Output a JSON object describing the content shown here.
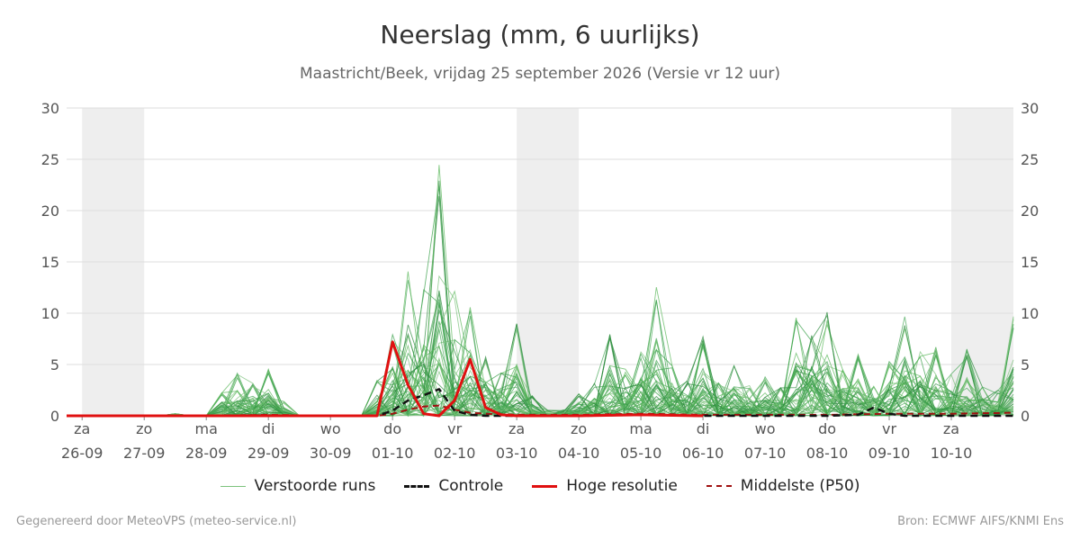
{
  "chart_data": {
    "type": "line",
    "title": "Neerslag (mm, 6 uurlijks)",
    "subtitle": "Maastricht/Beek, vrijdag 25 september 2026 (Versie vr 12 uur)",
    "ylim": [
      0,
      30
    ],
    "yticks": [
      0,
      5,
      10,
      15,
      20,
      25,
      30
    ],
    "xlim": [
      -0.25,
      15
    ],
    "grid": true,
    "weekend_shading": true,
    "x_ticks": [
      {
        "x": 0,
        "day": "za",
        "date": "26-09"
      },
      {
        "x": 1,
        "day": "zo",
        "date": "27-09"
      },
      {
        "x": 2,
        "day": "ma",
        "date": "28-09"
      },
      {
        "x": 3,
        "day": "di",
        "date": "29-09"
      },
      {
        "x": 4,
        "day": "wo",
        "date": "30-09"
      },
      {
        "x": 5,
        "day": "do",
        "date": "01-10"
      },
      {
        "x": 6,
        "day": "vr",
        "date": "02-10"
      },
      {
        "x": 7,
        "day": "za",
        "date": "03-10"
      },
      {
        "x": 8,
        "day": "zo",
        "date": "04-10"
      },
      {
        "x": 9,
        "day": "ma",
        "date": "05-10"
      },
      {
        "x": 10,
        "day": "di",
        "date": "06-10"
      },
      {
        "x": 11,
        "day": "wo",
        "date": "07-10"
      },
      {
        "x": 12,
        "day": "do",
        "date": "08-10"
      },
      {
        "x": 13,
        "day": "vr",
        "date": "09-10"
      },
      {
        "x": 14,
        "day": "za",
        "date": "10-10"
      }
    ],
    "legend": {
      "placement": "bottom",
      "entries": [
        {
          "label": "Verstoorde runs",
          "color": "#7cc27c",
          "style": "thin"
        },
        {
          "label": "Controle",
          "color": "#111111",
          "style": "dashed"
        },
        {
          "label": "Hoge resolutie",
          "color": "#e01010",
          "style": "solid"
        },
        {
          "label": "Middelste (P50)",
          "color": "#a01010",
          "style": "dashed"
        }
      ]
    },
    "series": [
      {
        "name": "Hoge resolutie",
        "color": "#e01010",
        "x": [
          -0.25,
          0,
          1,
          2,
          3,
          4,
          4.75,
          5,
          5.25,
          5.5,
          5.75,
          6,
          6.25,
          6.5,
          6.75,
          7,
          7.25,
          8,
          9,
          10
        ],
        "values": [
          0,
          0,
          0,
          0,
          0,
          0,
          0,
          7.2,
          3.0,
          0.2,
          0,
          1.5,
          5.5,
          0.8,
          0.1,
          0,
          0,
          0,
          0.1,
          0
        ]
      },
      {
        "name": "Controle",
        "color": "#111111",
        "x": [
          -0.25,
          0,
          1,
          2,
          3,
          4,
          4.75,
          5,
          5.25,
          5.5,
          5.75,
          6,
          6.25,
          6.5,
          7,
          8,
          9,
          10,
          11,
          12,
          12.5,
          12.75,
          13,
          13.25,
          14,
          15
        ],
        "values": [
          0,
          0,
          0,
          0,
          0,
          0,
          0,
          0.5,
          1.5,
          2.0,
          2.6,
          0.5,
          0.1,
          0,
          0,
          0,
          0.1,
          0,
          0,
          0,
          0.1,
          0.8,
          0.2,
          0,
          0,
          0
        ]
      },
      {
        "name": "Middelste (P50)",
        "color": "#a01010",
        "x": [
          -0.25,
          0,
          1,
          2,
          3,
          4,
          4.75,
          5,
          5.25,
          5.5,
          5.75,
          6,
          6.25,
          6.5,
          7,
          8,
          9,
          10,
          11,
          12,
          13,
          14,
          15
        ],
        "values": [
          0,
          0,
          0,
          0,
          0.1,
          0,
          0,
          0.2,
          0.6,
          0.9,
          1.0,
          0.6,
          0.3,
          0.2,
          0.1,
          0.1,
          0.2,
          0.1,
          0.1,
          0.1,
          0.2,
          0.2,
          0.3
        ]
      }
    ],
    "ensemble_peaks": [
      [
        1.5,
        2.25,
        2.5,
        2.75,
        3,
        3.25,
        4.75,
        5,
        5.25,
        5.5,
        5.75,
        6,
        6.25,
        6.5,
        6.75,
        7,
        7.25,
        8,
        8.25,
        8.5,
        8.75,
        9,
        9.25,
        9.5,
        9.75,
        10,
        10.25,
        10.5,
        10.75,
        11,
        11.25,
        11.5,
        11.75,
        12,
        12.25,
        12.5,
        12.75,
        13,
        13.25,
        13.5,
        13.75,
        14,
        14.25,
        14.5,
        14.75,
        15
      ],
      [
        0.2,
        2.3,
        4.2,
        3.2,
        4.6,
        1.4,
        3.5,
        8.0,
        15.0,
        13.6,
        24.6,
        12.7,
        11.3,
        6.0,
        4.8,
        9.1,
        2.0,
        2.2,
        3.2,
        8.7,
        4.6,
        6.4,
        13.2,
        5.4,
        3.5,
        7.8,
        3.2,
        4.9,
        3.0,
        3.8,
        2.8,
        10.2,
        8.2,
        10.1,
        4.5,
        6.0,
        3.0,
        5.4,
        9.8,
        6.5,
        6.8,
        4.1,
        6.5,
        3.0,
        2.5,
        10.0
      ]
    ]
  },
  "footer": {
    "left": "Gegenereerd door MeteoVPS (meteo-service.nl)",
    "right": "Bron: ECMWF AIFS/KNMI Ens"
  }
}
